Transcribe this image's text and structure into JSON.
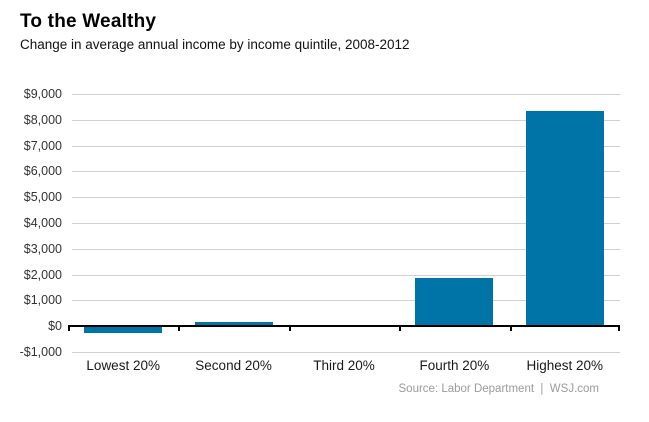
{
  "colors": {
    "bar": "#0074A6",
    "grid": "#d0d0d0",
    "axis": "#000000",
    "background": "#ffffff",
    "source_text": "#9b9b9b"
  },
  "chart_data": {
    "type": "bar",
    "title": "To the Wealthy",
    "subtitle": "Change in average annual income by income quintile, 2008-2012",
    "categories": [
      "Lowest 20%",
      "Second 20%",
      "Third 20%",
      "Fourth 20%",
      "Highest 20%"
    ],
    "values": [
      -250,
      150,
      50,
      1850,
      8350
    ],
    "xlabel": "",
    "ylabel": "",
    "ylim": [
      -1000,
      9000
    ],
    "grid": true,
    "legend": false,
    "yticks": [
      {
        "value": 9000,
        "label": "$9,000"
      },
      {
        "value": 8000,
        "label": "$8,000"
      },
      {
        "value": 7000,
        "label": "$7,000"
      },
      {
        "value": 6000,
        "label": "$6,000"
      },
      {
        "value": 5000,
        "label": "$5,000"
      },
      {
        "value": 4000,
        "label": "$4,000"
      },
      {
        "value": 3000,
        "label": "$3,000"
      },
      {
        "value": 2000,
        "label": "$2,000"
      },
      {
        "value": 1000,
        "label": "$1,000"
      },
      {
        "value": 0,
        "label": "$0"
      },
      {
        "value": -1000,
        "label": "-$1,000"
      }
    ],
    "source": "Source: Labor Department  |  WSJ.com"
  }
}
